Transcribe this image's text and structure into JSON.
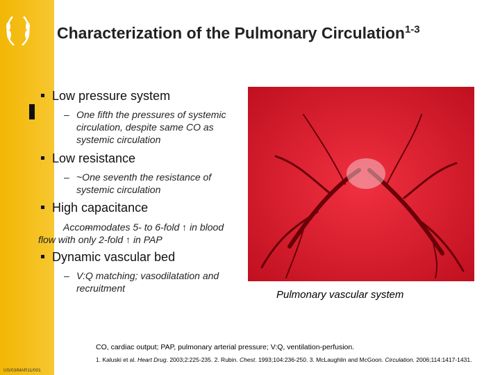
{
  "header": {
    "title": "Characterization of the Pulmonary Circulation",
    "title_superscript": "1-3"
  },
  "bullets": [
    {
      "text": "Low pressure system",
      "sub": "One fifth the pressures of systemic circulation, despite same CO as systemic circulation"
    },
    {
      "text": "Low resistance",
      "sub": "~One seventh the resistance of systemic circulation"
    },
    {
      "text": "High capacitance",
      "sub": "Accommodates 5- to 6-fold ↑ in blood flow with only 2-fold ↑ in PAP"
    },
    {
      "text": "Dynamic vascular bed",
      "sub": "V:Q matching; vasodilatation and recruitment"
    }
  ],
  "image": {
    "caption": "Pulmonary vascular system"
  },
  "footer": {
    "abbreviations": "CO, cardiac output; PAP, pulmonary arterial pressure; V:Q, ventilation-perfusion.",
    "references": [
      {
        "lead": "1. Kaluski et al. ",
        "journal": "Heart Drug",
        "citation": ". 2003;2:225-235. "
      },
      {
        "lead": "2. Rubin. ",
        "journal": "Chest",
        "citation": ". 1993;104:236-250. "
      },
      {
        "lead": "3. McLaughlin and McGoon. ",
        "journal": "Circulation",
        "citation": ". 2006;114:1417-1431."
      }
    ],
    "code": "US/03/MAR11/001"
  }
}
